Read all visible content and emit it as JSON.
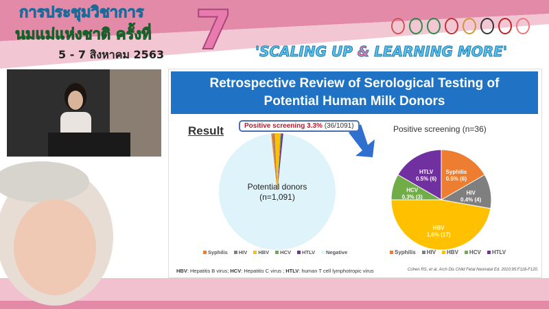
{
  "banner": {
    "thai_line1": "การประชุมวิชาการ",
    "thai_line2": "นมแม่แห่งชาติ ครั้งที่",
    "number": "7",
    "dates": "5 - 7 สิงหาคม 2563",
    "slogan_a": "'SCALING UP ",
    "slogan_amp": "&",
    "slogan_b": " LEARNING MORE'",
    "logo_count": 8
  },
  "slide": {
    "title_line1": "Retrospective Review of Serological Testing of",
    "title_line2": "Potential Human Milk Donors",
    "result_heading": "Result",
    "callout_bold": "Positive screening 3.3%",
    "callout_rest": " (36/1091)",
    "left_pie_label1": "Potential donors",
    "left_pie_label2": "(n=1,091)",
    "right_pie_title": "Positive screening (n=36)",
    "footnote_parts": [
      [
        "HBV",
        ": Hepatitis B virus; "
      ],
      [
        "HCV",
        ": Hepatitis C virus ; "
      ],
      [
        "HTLV",
        ": human T cell lymphotropic virus"
      ]
    ],
    "citation": "Cohen RS, et al. Arch Dis Child Fetal Neonatal Ed. 2010;95:F118-F120."
  },
  "chart_data": [
    {
      "type": "pie",
      "categories": [
        "Syphilis",
        "HIV",
        "HBV",
        "HCV",
        "HTLV",
        "Negative"
      ],
      "values": [
        6,
        4,
        17,
        3,
        6,
        1055
      ],
      "colors": [
        "#ed7d31",
        "#7f7f7f",
        "#ffc000",
        "#70ad47",
        "#7030a0",
        "#dff3fb"
      ],
      "legend": "bottom"
    },
    {
      "type": "pie",
      "title": "Positive screening (n=36)",
      "categories": [
        "Syphilis",
        "HIV",
        "HBV",
        "HCV",
        "HTLV"
      ],
      "values": [
        6,
        4,
        17,
        3,
        6
      ],
      "labels": [
        "0.5% (6)",
        "0.4% (4)",
        "1.6% (17)",
        "0.3% (3)",
        "0.5% (6)"
      ],
      "colors": [
        "#ed7d31",
        "#7f7f7f",
        "#ffc000",
        "#70ad47",
        "#7030a0"
      ],
      "legend": "bottom"
    }
  ]
}
